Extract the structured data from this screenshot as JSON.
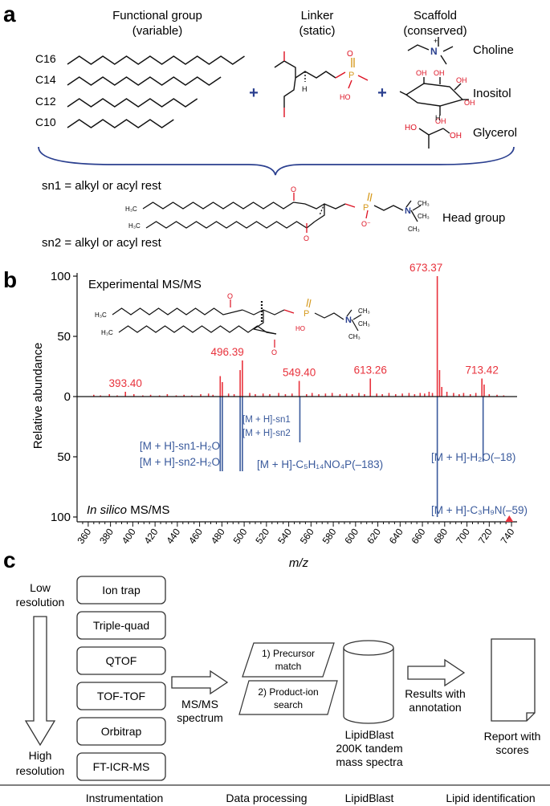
{
  "panel_a": {
    "label": "a",
    "col_functional": [
      "Functional group",
      "(variable)"
    ],
    "col_linker": [
      "Linker",
      "(static)"
    ],
    "col_scaffold": [
      "Scaffold",
      "(conserved)"
    ],
    "chains": [
      {
        "label": "C16",
        "zigzags": 15
      },
      {
        "label": "C14",
        "zigzags": 13
      },
      {
        "label": "C12",
        "zigzags": 11
      },
      {
        "label": "C10",
        "zigzags": 9
      }
    ],
    "scaffolds": [
      "Choline",
      "Inositol",
      "Glycerol"
    ],
    "plus": "+",
    "sn1": "sn1 = alkyl or acyl rest",
    "sn2": "sn2 = alkyl or acyl rest",
    "head_group": "Head group"
  },
  "panel_b": {
    "label": "b",
    "experimental_label": "Experimental MS/MS",
    "insilico_italic": "In silico",
    "insilico_rest": " MS/MS"
  },
  "panel_c": {
    "label": "c",
    "low_resolution": [
      "Low",
      "resolution"
    ],
    "high_resolution": [
      "High",
      "resolution"
    ],
    "instruments": [
      "Ion trap",
      "Triple-quad",
      "QTOF",
      "TOF-TOF",
      "Orbitrap",
      "FT-ICR-MS"
    ],
    "msms_spectrum": [
      "MS/MS",
      "spectrum"
    ],
    "step1": [
      "1) Precursor",
      "match"
    ],
    "step2": [
      "2) Product-ion",
      "search"
    ],
    "lipidblast_db": [
      "LipidBlast",
      "200K tandem",
      "mass spectra"
    ],
    "results": [
      "Results with",
      "annotation"
    ],
    "report": [
      "Report with",
      "scores"
    ],
    "bottom_labels": [
      "Instrumentation",
      "Data processing",
      "LipidBlast",
      "Lipid identification"
    ]
  },
  "chart_data": {
    "type": "bar",
    "title": "",
    "xlabel": "m/z",
    "ylabel": "Relative abundance",
    "xlim": [
      350,
      745
    ],
    "ylim": [
      -100,
      100
    ],
    "x_ticks": [
      360,
      380,
      400,
      420,
      440,
      460,
      480,
      500,
      520,
      540,
      560,
      580,
      600,
      620,
      640,
      660,
      680,
      700,
      720,
      740
    ],
    "y_tick_labels": [
      {
        "value": 100,
        "label": "100"
      },
      {
        "value": 50,
        "label": "50"
      },
      {
        "value": 0,
        "label": "0"
      },
      {
        "value": -50,
        "label": "50"
      },
      {
        "value": -100,
        "label": "100"
      }
    ],
    "colors": {
      "experimental": "#e8323c",
      "in_silico": "#3a5a9c"
    },
    "precursor_marker_mz": 738,
    "series": [
      {
        "name": "Experimental MS/MS",
        "points": [
          {
            "mz": 393.4,
            "y": 4,
            "label": "393.40"
          },
          {
            "mz": 478.5,
            "y": 17
          },
          {
            "mz": 480.4,
            "y": 12
          },
          {
            "mz": 496.39,
            "y": 22,
            "label": "496.39"
          },
          {
            "mz": 498.4,
            "y": 30
          },
          {
            "mz": 549.4,
            "y": 13,
            "label": "549.40"
          },
          {
            "mz": 613.26,
            "y": 15,
            "label": "613.26"
          },
          {
            "mz": 673.37,
            "y": 100,
            "label": "673.37"
          },
          {
            "mz": 675.4,
            "y": 22
          },
          {
            "mz": 677.4,
            "y": 8
          },
          {
            "mz": 713.42,
            "y": 15,
            "label": "713.42"
          },
          {
            "mz": 715.4,
            "y": 10
          },
          {
            "mz": 365,
            "y": 1.5
          },
          {
            "mz": 371,
            "y": 1
          },
          {
            "mz": 379,
            "y": 2
          },
          {
            "mz": 386,
            "y": 1
          },
          {
            "mz": 401,
            "y": 2
          },
          {
            "mz": 409,
            "y": 1
          },
          {
            "mz": 416,
            "y": 1.5
          },
          {
            "mz": 424,
            "y": 1
          },
          {
            "mz": 431,
            "y": 2
          },
          {
            "mz": 439,
            "y": 1
          },
          {
            "mz": 446,
            "y": 1.5
          },
          {
            "mz": 453,
            "y": 1
          },
          {
            "mz": 461,
            "y": 2
          },
          {
            "mz": 468,
            "y": 2.5
          },
          {
            "mz": 472,
            "y": 1.5
          },
          {
            "mz": 486,
            "y": 2.5
          },
          {
            "mz": 491,
            "y": 2
          },
          {
            "mz": 505,
            "y": 3
          },
          {
            "mz": 510,
            "y": 2
          },
          {
            "mz": 517,
            "y": 2.5
          },
          {
            "mz": 523,
            "y": 2
          },
          {
            "mz": 531,
            "y": 3
          },
          {
            "mz": 537,
            "y": 2
          },
          {
            "mz": 543,
            "y": 2.5
          },
          {
            "mz": 556,
            "y": 2
          },
          {
            "mz": 561,
            "y": 3
          },
          {
            "mz": 567,
            "y": 2
          },
          {
            "mz": 573,
            "y": 2.5
          },
          {
            "mz": 579,
            "y": 3
          },
          {
            "mz": 586,
            "y": 2
          },
          {
            "mz": 592,
            "y": 2.5
          },
          {
            "mz": 597,
            "y": 2
          },
          {
            "mz": 603,
            "y": 3
          },
          {
            "mz": 608,
            "y": 2
          },
          {
            "mz": 619,
            "y": 2.5
          },
          {
            "mz": 624,
            "y": 2
          },
          {
            "mz": 630,
            "y": 3
          },
          {
            "mz": 636,
            "y": 2
          },
          {
            "mz": 642,
            "y": 2.5
          },
          {
            "mz": 648,
            "y": 3
          },
          {
            "mz": 653,
            "y": 2
          },
          {
            "mz": 658,
            "y": 3
          },
          {
            "mz": 662,
            "y": 2.5
          },
          {
            "mz": 666,
            "y": 4
          },
          {
            "mz": 669,
            "y": 3
          },
          {
            "mz": 682,
            "y": 4
          },
          {
            "mz": 688,
            "y": 3
          },
          {
            "mz": 693,
            "y": 2
          },
          {
            "mz": 697,
            "y": 3
          },
          {
            "mz": 703,
            "y": 2
          },
          {
            "mz": 708,
            "y": 3
          },
          {
            "mz": 720,
            "y": 2
          },
          {
            "mz": 727,
            "y": 1.5
          },
          {
            "mz": 733,
            "y": 1
          }
        ]
      },
      {
        "name": "In silico MS/MS",
        "points": [
          {
            "mz": 478.5,
            "y": -62
          },
          {
            "mz": 480.4,
            "y": -62
          },
          {
            "mz": 496.39,
            "y": -62
          },
          {
            "mz": 498.4,
            "y": -62
          },
          {
            "mz": 550.0,
            "y": -38
          },
          {
            "mz": 673.37,
            "y": -100
          },
          {
            "mz": 714.5,
            "y": -54
          }
        ],
        "annotations": [
          {
            "lines": [
              "[M + H]-sn1-H₂O",
              "[M + H]-sn2-H₂O"
            ]
          },
          {
            "lines": [
              "[M + H]-sn1",
              "[M + H]-sn2"
            ]
          },
          {
            "lines": [
              "[M + H]-C₅H₁₄NO₄P(–183)"
            ]
          },
          {
            "lines": [
              "[M + H]-H₂O(–18)"
            ]
          },
          {
            "lines": [
              "[M + H]-C₃H₉N(–59)"
            ]
          }
        ]
      }
    ]
  }
}
